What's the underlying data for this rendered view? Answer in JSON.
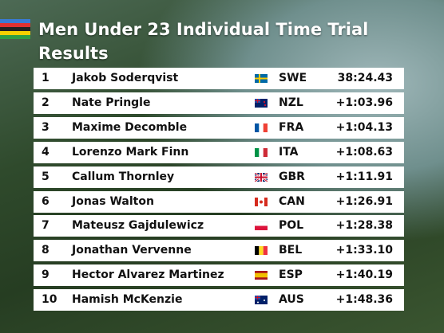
{
  "header": {
    "title": "Men Under 23 Individual Time Trial Results"
  },
  "table": {
    "rows": [
      [
        "1",
        "Jakob Soderqvist",
        "SWE",
        "38:24.43"
      ],
      [
        "2",
        "Nate Pringle",
        "NZL",
        "+1:03.96"
      ],
      [
        "3",
        "Maxime Decomble",
        "FRA",
        "+1:04.13"
      ],
      [
        "4",
        "Lorenzo Mark Finn",
        "ITA",
        "+1:08.63"
      ],
      [
        "5",
        "Callum Thornley",
        "GBR",
        "+1:11.91"
      ],
      [
        "6",
        "Jonas Walton",
        "CAN",
        "+1:26.91"
      ],
      [
        "7",
        "Mateusz Gajdulewicz",
        "POL",
        "+1:28.38"
      ],
      [
        "8",
        "Jonathan Vervenne",
        "BEL",
        "+1:33.10"
      ],
      [
        "9",
        "Hector Alvarez Martinez",
        "ESP",
        "+1:40.19"
      ],
      [
        "10",
        "Hamish McKenzie",
        "AUS",
        "+1:48.36"
      ]
    ]
  }
}
